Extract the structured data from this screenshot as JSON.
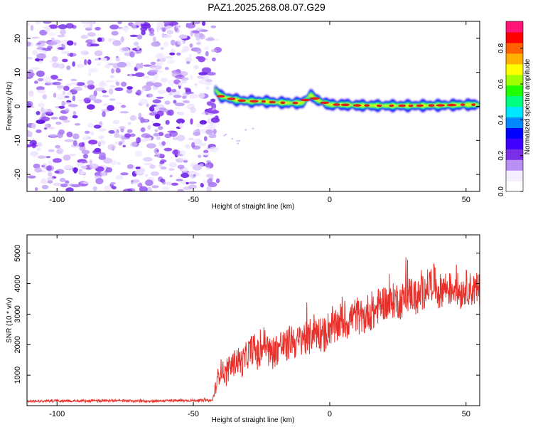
{
  "title": "PAZ1.2025.268.08.07.G29",
  "colors": {
    "snr_line": "#e8302a",
    "noise_blob": "#8a3cf0",
    "ridge_core": "#e0201e"
  },
  "chart_data": [
    {
      "type": "heatmap",
      "name": "spectrogram",
      "xlabel": "Height of straight line (km)",
      "ylabel": "Frequency (Hz)",
      "xlim": [
        -111,
        55
      ],
      "ylim": [
        -25,
        25
      ],
      "xticks": [
        -100,
        -50,
        0,
        50
      ],
      "yticks": [
        -20,
        -10,
        0,
        10,
        20
      ],
      "noise_region_x": [
        -111,
        -42
      ],
      "signal_onset_x": -42,
      "ridge": {
        "x": [
          -42,
          -40,
          -35,
          -30,
          -25,
          -20,
          -15,
          -10,
          -7,
          -5,
          0,
          5,
          10,
          20,
          30,
          40,
          50,
          55
        ],
        "y": [
          5,
          3,
          2,
          1.5,
          1.5,
          1.2,
          1,
          1,
          3.5,
          2,
          0.5,
          0.5,
          0.3,
          0.2,
          0.2,
          0.3,
          0.5,
          0.5
        ]
      },
      "colorbar": {
        "label": "Normalized spectral amplitude",
        "range": [
          0,
          0.95
        ],
        "ticks": [
          0.0,
          0.2,
          0.4,
          0.6,
          0.8
        ],
        "tick_labels": [
          "0.0",
          "0.2",
          "0.4",
          "0.6",
          "0.8"
        ],
        "colormap": [
          "#ffffff",
          "#f4eeff",
          "#b890f4",
          "#7a2ee8",
          "#3f00ff",
          "#0000ff",
          "#0088ff",
          "#00e8ff",
          "#00ff80",
          "#20ff00",
          "#a0ff00",
          "#ffff00",
          "#ffb000",
          "#ff6000",
          "#ff0000",
          "#ff1478"
        ]
      }
    },
    {
      "type": "line",
      "name": "snr",
      "xlabel": "Height of straight line (km)",
      "ylabel": "SNR (10 * v/v)",
      "xlim": [
        -111,
        55
      ],
      "ylim": [
        0,
        5600
      ],
      "xticks": [
        -100,
        -50,
        0,
        50
      ],
      "yticks": [
        1000,
        2000,
        3000,
        4000,
        5000
      ],
      "series": [
        {
          "name": "SNR",
          "x": [
            -111,
            -100,
            -90,
            -80,
            -70,
            -60,
            -50,
            -43,
            -41,
            -40,
            -38,
            -36,
            -34,
            -32,
            -30,
            -28,
            -26,
            -24,
            -22,
            -20,
            -18,
            -16,
            -14,
            -12,
            -10,
            -8,
            -6,
            -4,
            -2,
            0,
            2,
            4,
            6,
            8,
            10,
            12,
            14,
            16,
            18,
            20,
            22,
            24,
            26,
            28,
            30,
            32,
            34,
            36,
            38,
            40,
            42,
            44,
            46,
            48,
            50,
            52,
            54,
            55
          ],
          "y": [
            150,
            160,
            155,
            165,
            150,
            160,
            170,
            170,
            900,
            1200,
            1000,
            1300,
            1500,
            1400,
            1700,
            1900,
            1600,
            2100,
            1700,
            1800,
            2000,
            1900,
            2200,
            2000,
            2300,
            2100,
            2500,
            2400,
            2300,
            2600,
            2500,
            2800,
            2700,
            2900,
            3000,
            2800,
            3100,
            3000,
            3300,
            3400,
            3300,
            3500,
            3400,
            3600,
            3700,
            3500,
            3700,
            3900,
            4100,
            3700,
            3900,
            3800,
            3900,
            3700,
            3900,
            3800,
            3800,
            3800
          ],
          "noise_amplitude": [
            60,
            60,
            60,
            60,
            60,
            60,
            60,
            60,
            500,
            500,
            550,
            600,
            650,
            700,
            700,
            750,
            800,
            800,
            800,
            800,
            800,
            800,
            800,
            800,
            850,
            850,
            850,
            850,
            850,
            850,
            850,
            850,
            850,
            850,
            850,
            850,
            850,
            850,
            850,
            850,
            850,
            850,
            850,
            850,
            850,
            850,
            850,
            850,
            850,
            850,
            800,
            800,
            800,
            800,
            800,
            800,
            800,
            800
          ]
        }
      ]
    }
  ]
}
